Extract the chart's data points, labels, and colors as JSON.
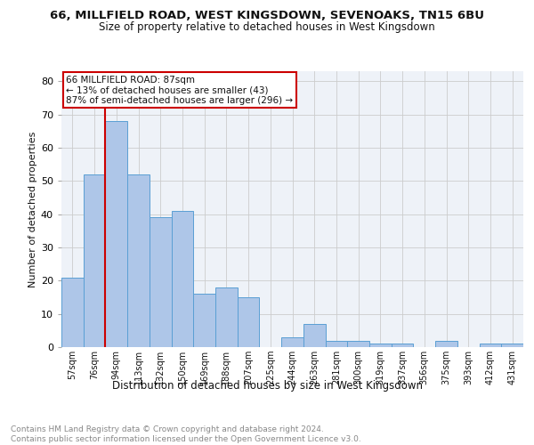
{
  "title1": "66, MILLFIELD ROAD, WEST KINGSDOWN, SEVENOAKS, TN15 6BU",
  "title2": "Size of property relative to detached houses in West Kingsdown",
  "xlabel": "Distribution of detached houses by size in West Kingsdown",
  "ylabel": "Number of detached properties",
  "footnote": "Contains HM Land Registry data © Crown copyright and database right 2024.\nContains public sector information licensed under the Open Government Licence v3.0.",
  "bar_labels": [
    "57sqm",
    "76sqm",
    "94sqm",
    "113sqm",
    "132sqm",
    "150sqm",
    "169sqm",
    "188sqm",
    "207sqm",
    "225sqm",
    "244sqm",
    "263sqm",
    "281sqm",
    "300sqm",
    "319sqm",
    "337sqm",
    "356sqm",
    "375sqm",
    "393sqm",
    "412sqm",
    "431sqm"
  ],
  "bar_values": [
    21,
    52,
    68,
    52,
    39,
    41,
    16,
    18,
    15,
    0,
    3,
    7,
    2,
    2,
    1,
    1,
    0,
    2,
    0,
    1,
    1
  ],
  "bar_color": "#aec6e8",
  "bar_edge_color": "#5a9fd4",
  "vline_position": 1.5,
  "vline_color": "#cc0000",
  "annotation_text": "66 MILLFIELD ROAD: 87sqm\n← 13% of detached houses are smaller (43)\n87% of semi-detached houses are larger (296) →",
  "annotation_box_color": "#ffffff",
  "annotation_box_edge": "#cc0000",
  "ylim": [
    0,
    83
  ],
  "yticks": [
    0,
    10,
    20,
    30,
    40,
    50,
    60,
    70,
    80
  ],
  "bg_color": "#eef2f8",
  "plot_bg_color": "#eef2f8",
  "title1_fontsize": 9.5,
  "title2_fontsize": 8.5,
  "ylabel_fontsize": 8,
  "xlabel_fontsize": 8.5,
  "footnote_fontsize": 6.5,
  "tick_label_fontsize": 7
}
